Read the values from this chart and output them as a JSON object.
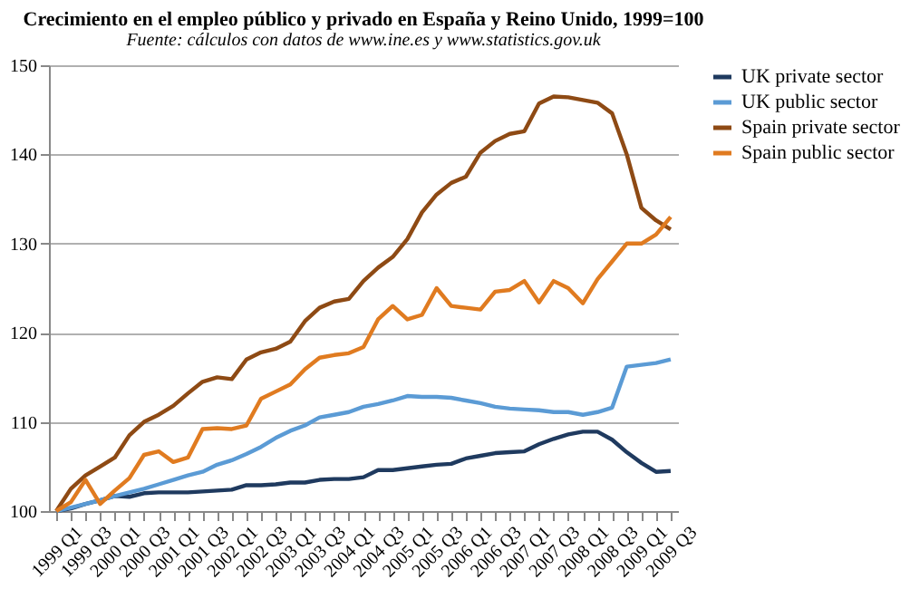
{
  "chart_data": {
    "type": "line",
    "title": "Crecimiento en el empleo público y privado en España y Reino Unido, 1999=100",
    "subtitle": "Fuente: cálculos con datos de www.ine.es y www.statistics.gov.uk",
    "categories": [
      "1999 Q1",
      null,
      "1999 Q3",
      null,
      "2000 Q1",
      null,
      "2000 Q3",
      null,
      "2001 Q1",
      null,
      "2001 Q3",
      null,
      "2002 Q1",
      null,
      "2002 Q3",
      null,
      "2003 Q1",
      null,
      "2003 Q3",
      null,
      "2004 Q1",
      null,
      "2004 Q3",
      null,
      "2005 Q1",
      null,
      "2005 Q3",
      null,
      "2006 Q1",
      null,
      "2006 Q3",
      null,
      "2007 Q1",
      null,
      "2007 Q3",
      null,
      "2008 Q1",
      null,
      "2008 Q3",
      null,
      "2009 Q1",
      null,
      "2009 Q3"
    ],
    "series": [
      {
        "name": "UK private sector",
        "color": "#1f3a5f",
        "values": [
          100,
          100.3,
          100.8,
          101.2,
          101.7,
          101.6,
          102,
          102.1,
          102.1,
          102.1,
          102.2,
          102.3,
          102.4,
          102.9,
          102.9,
          103,
          103.2,
          103.2,
          103.5,
          103.6,
          103.6,
          103.8,
          104.6,
          104.6,
          104.8,
          105,
          105.2,
          105.3,
          105.9,
          106.2,
          106.5,
          106.6,
          106.7,
          107.5,
          108.1,
          108.6,
          108.9,
          108.9,
          108,
          106.6,
          105.4,
          104.4,
          104.5
        ]
      },
      {
        "name": "UK public sector",
        "color": "#5b9bd5",
        "values": [
          100,
          100.4,
          100.8,
          101.2,
          101.7,
          102.1,
          102.5,
          103,
          103.5,
          104,
          104.4,
          105.2,
          105.7,
          106.4,
          107.2,
          108.2,
          109,
          109.6,
          110.5,
          110.8,
          111.1,
          111.7,
          112,
          112.4,
          112.9,
          112.8,
          112.8,
          112.7,
          112.4,
          112.1,
          111.7,
          111.5,
          111.4,
          111.3,
          111.1,
          111.1,
          110.8,
          111.1,
          111.6,
          116.2,
          116.4,
          116.6,
          117
        ]
      },
      {
        "name": "Spain private sector",
        "color": "#8e4a14",
        "values": [
          100,
          102.5,
          104,
          105,
          106,
          108.5,
          110,
          110.8,
          111.8,
          113.2,
          114.5,
          115,
          114.8,
          117,
          117.8,
          118.2,
          119,
          121.3,
          122.8,
          123.5,
          123.8,
          125.8,
          127.3,
          128.5,
          130.5,
          133.5,
          135.5,
          136.8,
          137.5,
          140.2,
          141.5,
          142.3,
          142.6,
          145.7,
          146.5,
          146.4,
          146.1,
          145.8,
          144.6,
          140,
          134,
          132.6,
          131.6
        ]
      },
      {
        "name": "Spain public sector",
        "color": "#e07b20",
        "values": [
          100,
          101,
          103.5,
          100.8,
          102.3,
          103.7,
          106.3,
          106.7,
          105.5,
          106,
          109.2,
          109.3,
          109.2,
          109.6,
          112.6,
          113.4,
          114.2,
          115.9,
          117.2,
          117.5,
          117.7,
          118.4,
          121.5,
          123,
          121.5,
          122,
          125,
          123,
          122.8,
          122.6,
          124.6,
          124.8,
          125.8,
          123.4,
          125.8,
          125,
          123.3,
          126,
          128,
          130,
          130,
          131,
          133
        ]
      }
    ],
    "ylim": [
      100,
      150
    ],
    "yticks": [
      100,
      110,
      120,
      130,
      140,
      150
    ],
    "grid": "y",
    "legend": "right",
    "marker": "none",
    "line_style": "solid"
  }
}
